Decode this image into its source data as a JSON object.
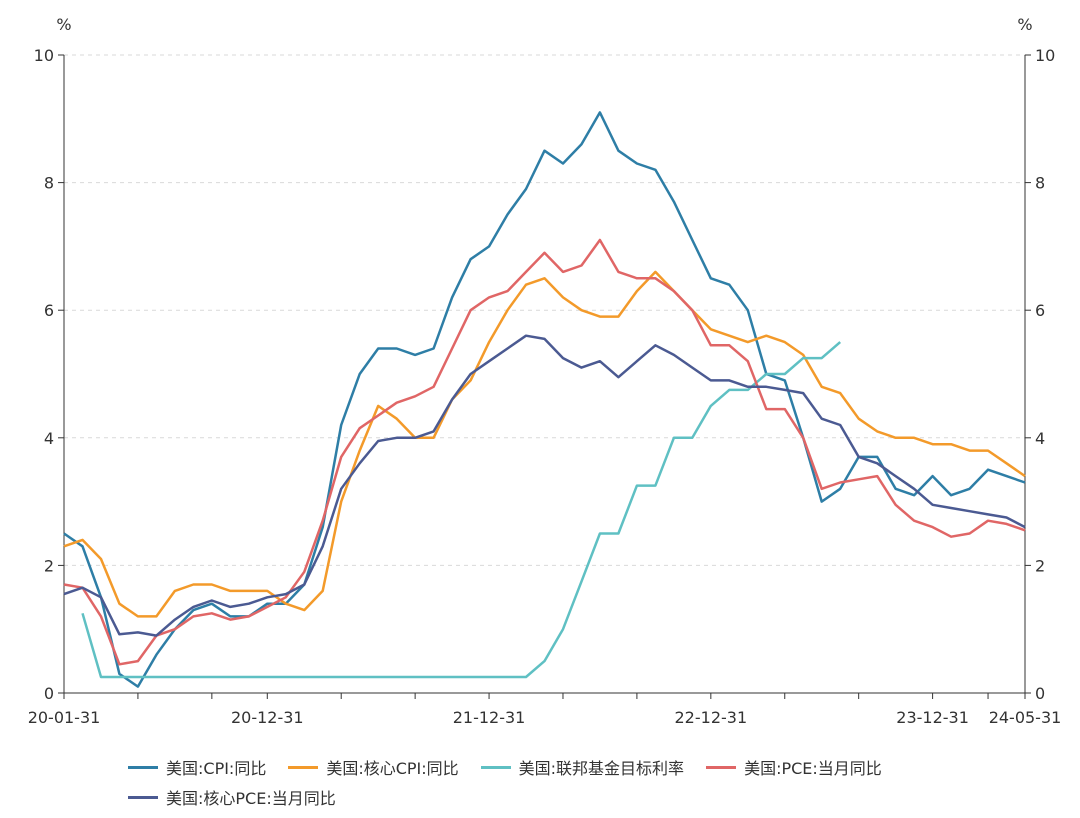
{
  "chart_data": {
    "type": "line",
    "ylabel_left": "%",
    "ylabel_right": "%",
    "ylim": [
      0,
      10
    ],
    "y_ticks": [
      0,
      2,
      4,
      6,
      8,
      10
    ],
    "x_tick_labels": [
      "20-01-31",
      "20-12-31",
      "21-12-31",
      "22-12-31",
      "23-12-31",
      "24-05-31"
    ],
    "x": [
      "2020-01",
      "2020-02",
      "2020-03",
      "2020-04",
      "2020-05",
      "2020-06",
      "2020-07",
      "2020-08",
      "2020-09",
      "2020-10",
      "2020-11",
      "2020-12",
      "2021-01",
      "2021-02",
      "2021-03",
      "2021-04",
      "2021-05",
      "2021-06",
      "2021-07",
      "2021-08",
      "2021-09",
      "2021-10",
      "2021-11",
      "2021-12",
      "2022-01",
      "2022-02",
      "2022-03",
      "2022-04",
      "2022-05",
      "2022-06",
      "2022-07",
      "2022-08",
      "2022-09",
      "2022-10",
      "2022-11",
      "2022-12",
      "2023-01",
      "2023-02",
      "2023-03",
      "2023-04",
      "2023-05",
      "2023-06",
      "2023-07",
      "2023-08",
      "2023-09",
      "2023-10",
      "2023-11",
      "2023-12",
      "2024-01",
      "2024-02",
      "2024-03",
      "2024-04",
      "2024-05"
    ],
    "grid": true,
    "legend_position": "bottom",
    "series": [
      {
        "name": "美国:CPI:同比",
        "color": "#2e7ea6",
        "values": [
          2.5,
          2.3,
          1.5,
          0.3,
          0.1,
          0.6,
          1.0,
          1.3,
          1.4,
          1.2,
          1.2,
          1.4,
          1.4,
          1.7,
          2.6,
          4.2,
          5.0,
          5.4,
          5.4,
          5.3,
          5.4,
          6.2,
          6.8,
          7.0,
          7.5,
          7.9,
          8.5,
          8.3,
          8.6,
          9.1,
          8.5,
          8.3,
          8.2,
          7.7,
          7.1,
          6.5,
          6.4,
          6.0,
          5.0,
          4.9,
          4.0,
          3.0,
          3.2,
          3.7,
          3.7,
          3.2,
          3.1,
          3.4,
          3.1,
          3.2,
          3.5,
          3.4,
          3.3
        ]
      },
      {
        "name": "美国:核心CPI:同比",
        "color": "#f39a2a",
        "values": [
          2.3,
          2.4,
          2.1,
          1.4,
          1.2,
          1.2,
          1.6,
          1.7,
          1.7,
          1.6,
          1.6,
          1.6,
          1.4,
          1.3,
          1.6,
          3.0,
          3.8,
          4.5,
          4.3,
          4.0,
          4.0,
          4.6,
          4.9,
          5.5,
          6.0,
          6.4,
          6.5,
          6.2,
          6.0,
          5.9,
          5.9,
          6.3,
          6.6,
          6.3,
          6.0,
          5.7,
          5.6,
          5.5,
          5.6,
          5.5,
          5.3,
          4.8,
          4.7,
          4.3,
          4.1,
          4.0,
          4.0,
          3.9,
          3.9,
          3.8,
          3.8,
          3.6,
          3.4
        ]
      },
      {
        "name": "美国:联邦基金目标利率",
        "color": "#5fc0c3",
        "values": [
          null,
          1.25,
          0.25,
          0.25,
          0.25,
          0.25,
          0.25,
          0.25,
          0.25,
          0.25,
          0.25,
          0.25,
          0.25,
          0.25,
          0.25,
          0.25,
          0.25,
          0.25,
          0.25,
          0.25,
          0.25,
          0.25,
          0.25,
          0.25,
          0.25,
          0.25,
          0.5,
          1.0,
          1.75,
          2.5,
          2.5,
          3.25,
          3.25,
          4.0,
          4.0,
          4.5,
          4.75,
          4.75,
          5.0,
          5.0,
          5.25,
          5.25,
          5.5,
          null,
          null,
          null,
          null,
          null,
          null,
          null,
          null,
          null,
          null
        ]
      },
      {
        "name": "美国:PCE:当月同比",
        "color": "#e06666",
        "values": [
          1.7,
          1.65,
          1.2,
          0.45,
          0.5,
          0.9,
          1.0,
          1.2,
          1.25,
          1.15,
          1.2,
          1.35,
          1.5,
          1.9,
          2.7,
          3.7,
          4.15,
          4.35,
          4.55,
          4.65,
          4.8,
          5.4,
          6.0,
          6.2,
          6.3,
          6.6,
          6.9,
          6.6,
          6.7,
          7.1,
          6.6,
          6.5,
          6.5,
          6.3,
          6.0,
          5.45,
          5.45,
          5.2,
          4.45,
          4.45,
          4.0,
          3.2,
          3.3,
          3.35,
          3.4,
          2.95,
          2.7,
          2.6,
          2.45,
          2.5,
          2.7,
          2.65,
          2.55
        ]
      },
      {
        "name": "美国:核心PCE:当月同比",
        "color": "#4b5a92",
        "values": [
          1.55,
          1.65,
          1.5,
          0.92,
          0.95,
          0.9,
          1.15,
          1.35,
          1.45,
          1.35,
          1.4,
          1.5,
          1.55,
          1.7,
          2.3,
          3.2,
          3.6,
          3.95,
          4.0,
          4.0,
          4.1,
          4.6,
          5.0,
          5.2,
          5.4,
          5.6,
          5.55,
          5.25,
          5.1,
          5.2,
          4.95,
          5.2,
          5.45,
          5.3,
          5.1,
          4.9,
          4.9,
          4.8,
          4.8,
          4.75,
          4.7,
          4.3,
          4.2,
          3.7,
          3.6,
          3.4,
          3.2,
          2.95,
          2.9,
          2.85,
          2.8,
          2.75,
          2.6
        ]
      }
    ]
  }
}
